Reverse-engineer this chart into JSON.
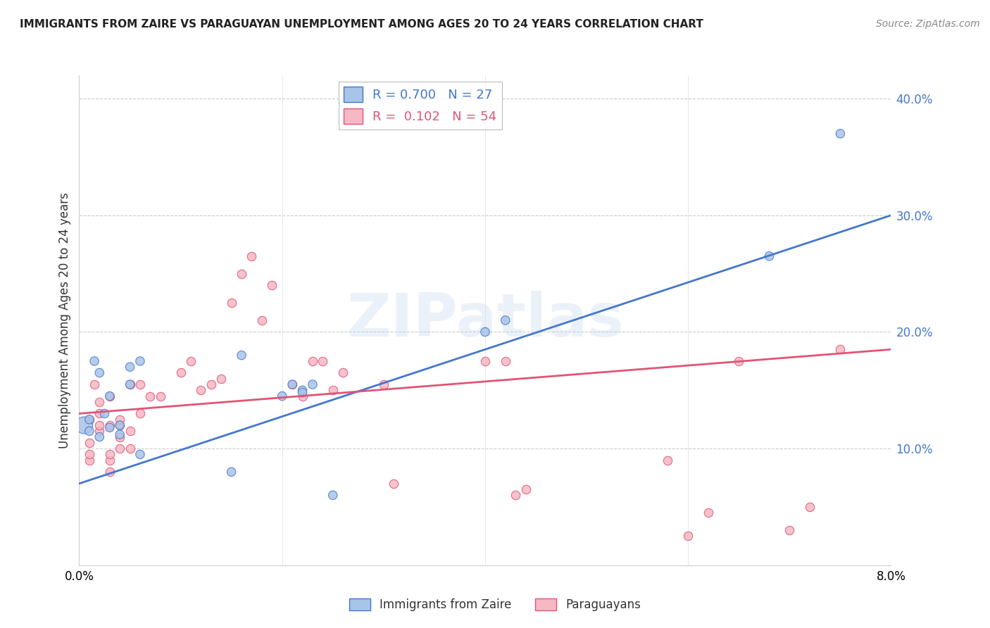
{
  "title": "IMMIGRANTS FROM ZAIRE VS PARAGUAYAN UNEMPLOYMENT AMONG AGES 20 TO 24 YEARS CORRELATION CHART",
  "source": "Source: ZipAtlas.com",
  "ylabel": "Unemployment Among Ages 20 to 24 years",
  "background_color": "#ffffff",
  "watermark": "ZIPatlas",
  "blue_R": "0.700",
  "blue_N": "27",
  "pink_R": "0.102",
  "pink_N": "54",
  "blue_color": "#a8c4e8",
  "pink_color": "#f5b8c4",
  "blue_line_color": "#4477cc",
  "pink_line_color": "#e05575",
  "xlim": [
    0.0,
    0.08
  ],
  "ylim": [
    0.0,
    0.42
  ],
  "yticks": [
    0.1,
    0.2,
    0.3,
    0.4
  ],
  "ytick_labels": [
    "10.0%",
    "20.0%",
    "30.0%",
    "40.0%"
  ],
  "xtick_left_label": "0.0%",
  "xtick_right_label": "8.0%",
  "blue_line_x0": 0.0,
  "blue_line_y0": 0.07,
  "blue_line_x1": 0.08,
  "blue_line_y1": 0.3,
  "pink_line_x0": 0.0,
  "pink_line_y0": 0.13,
  "pink_line_x1": 0.08,
  "pink_line_y1": 0.185,
  "blue_scatter_x": [
    0.0005,
    0.001,
    0.001,
    0.0015,
    0.002,
    0.002,
    0.0025,
    0.003,
    0.003,
    0.004,
    0.004,
    0.005,
    0.005,
    0.006,
    0.006,
    0.015,
    0.016,
    0.02,
    0.021,
    0.022,
    0.022,
    0.023,
    0.025,
    0.04,
    0.042,
    0.068,
    0.075
  ],
  "blue_scatter_y": [
    0.12,
    0.115,
    0.125,
    0.175,
    0.11,
    0.165,
    0.13,
    0.118,
    0.145,
    0.12,
    0.112,
    0.155,
    0.17,
    0.095,
    0.175,
    0.08,
    0.18,
    0.145,
    0.155,
    0.15,
    0.148,
    0.155,
    0.06,
    0.2,
    0.21,
    0.265,
    0.37
  ],
  "blue_scatter_size_big": 300,
  "blue_scatter_size_small": 80,
  "blue_big_idx": 0,
  "pink_scatter_x": [
    0.001,
    0.001,
    0.001,
    0.001,
    0.0015,
    0.002,
    0.002,
    0.002,
    0.002,
    0.003,
    0.003,
    0.003,
    0.003,
    0.003,
    0.004,
    0.004,
    0.004,
    0.004,
    0.005,
    0.005,
    0.005,
    0.006,
    0.006,
    0.007,
    0.008,
    0.01,
    0.011,
    0.012,
    0.013,
    0.014,
    0.015,
    0.016,
    0.017,
    0.018,
    0.019,
    0.021,
    0.022,
    0.023,
    0.024,
    0.025,
    0.026,
    0.03,
    0.031,
    0.04,
    0.042,
    0.043,
    0.044,
    0.058,
    0.06,
    0.062,
    0.065,
    0.07,
    0.072,
    0.075
  ],
  "pink_scatter_y": [
    0.09,
    0.095,
    0.105,
    0.125,
    0.155,
    0.115,
    0.12,
    0.13,
    0.14,
    0.08,
    0.09,
    0.095,
    0.12,
    0.145,
    0.1,
    0.11,
    0.12,
    0.125,
    0.1,
    0.115,
    0.155,
    0.13,
    0.155,
    0.145,
    0.145,
    0.165,
    0.175,
    0.15,
    0.155,
    0.16,
    0.225,
    0.25,
    0.265,
    0.21,
    0.24,
    0.155,
    0.145,
    0.175,
    0.175,
    0.15,
    0.165,
    0.155,
    0.07,
    0.175,
    0.175,
    0.06,
    0.065,
    0.09,
    0.025,
    0.045,
    0.175,
    0.03,
    0.05,
    0.185
  ],
  "legend_label_blue": "Immigrants from Zaire",
  "legend_label_pink": "Paraguayans"
}
